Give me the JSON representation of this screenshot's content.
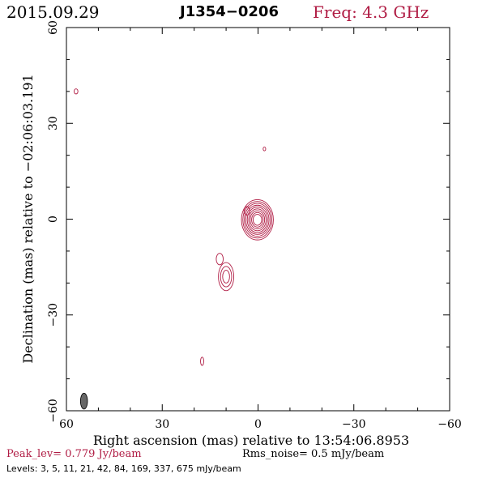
{
  "header": {
    "date": "2015.09.29",
    "source": "J1354−0206",
    "freq": "Freq: 4.3 GHz"
  },
  "footer": {
    "peak": "Peak_lev=  0.779 Jy/beam",
    "rms": "Rms_noise=  0.5 mJy/beam",
    "levels": "Levels:   3,   5,  11,  21,  42,  84, 169, 337, 675 mJy/beam"
  },
  "colors": {
    "contour": "#b01c44",
    "beam": "#666666",
    "frame": "#000000"
  },
  "chart_data": {
    "type": "contour",
    "xlabel": "Right ascension (mas) relative to 13:54:06.8953",
    "ylabel": "Declination (mas) relative to −02:06:03.191",
    "xlim": [
      60,
      -60
    ],
    "ylim": [
      -60,
      60
    ],
    "xticks": [
      60,
      30,
      0,
      -30,
      -60
    ],
    "yticks": [
      -60,
      -30,
      0,
      30,
      60
    ],
    "xtick_labels": [
      "60",
      "30",
      "0",
      "−30",
      "−60"
    ],
    "ytick_labels": [
      "−60",
      "−30",
      "0",
      "30",
      "60"
    ],
    "contour_levels_mJy": [
      3,
      5,
      11,
      21,
      42,
      84,
      169,
      337,
      675
    ],
    "components": [
      {
        "x": 0.2,
        "y": -0.2,
        "nlev": 9,
        "rx": 5.0,
        "ry": 6.3
      },
      {
        "x": 3.5,
        "y": 2.6,
        "nlev": 1,
        "rx": 0.9,
        "ry": 1.3
      },
      {
        "x": 12.0,
        "y": -12.5,
        "nlev": 1,
        "rx": 1.1,
        "ry": 1.8
      },
      {
        "x": 10.0,
        "y": -18.0,
        "nlev": 3,
        "rx": 2.4,
        "ry": 4.4
      },
      {
        "x": 57.0,
        "y": 40.0,
        "nlev": 1,
        "rx": 0.6,
        "ry": 0.8
      },
      {
        "x": -2.0,
        "y": 22.0,
        "nlev": 1,
        "rx": 0.4,
        "ry": 0.6
      },
      {
        "x": 17.5,
        "y": -44.5,
        "nlev": 1,
        "rx": 0.5,
        "ry": 1.3
      }
    ],
    "beam": {
      "x": 54.5,
      "y": -57.0,
      "major_mas": 5.0,
      "minor_mas": 2.2,
      "pa_deg": 0
    }
  }
}
